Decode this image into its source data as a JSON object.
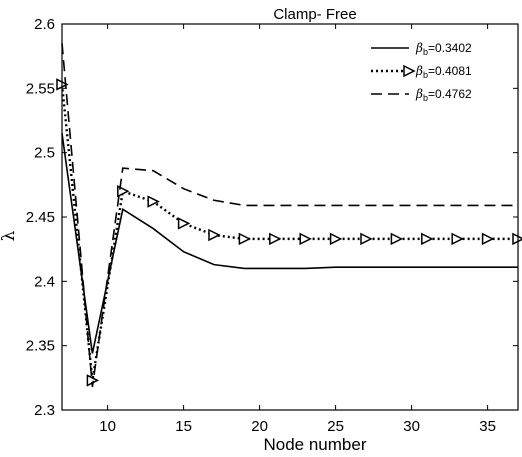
{
  "chart_data": {
    "type": "line",
    "title": "Clamp- Free",
    "xlabel": "Node number",
    "ylabel": "λ",
    "xlim": [
      7,
      37
    ],
    "ylim": [
      2.3,
      2.6
    ],
    "xticks": [
      "10",
      "15",
      "20",
      "25",
      "30",
      "35"
    ],
    "xtick_values": [
      10,
      15,
      20,
      25,
      30,
      35
    ],
    "yticks": [
      "2.3",
      "2.35",
      "2.4",
      "2.45",
      "2.5",
      "2.55",
      "2.6"
    ],
    "ytick_values": [
      2.3,
      2.35,
      2.4,
      2.45,
      2.5,
      2.55,
      2.6
    ],
    "grid": false,
    "legend_position": "top-right",
    "x": [
      7,
      9,
      11,
      13,
      15,
      17,
      19,
      21,
      23,
      25,
      27,
      29,
      31,
      33,
      35,
      37
    ],
    "series": [
      {
        "name": "=0.3402",
        "symbol": "β",
        "subscript": "b",
        "style": "solid",
        "marker": "none",
        "color": "#000000",
        "values": [
          2.515,
          2.344,
          2.456,
          2.441,
          2.423,
          2.413,
          2.41,
          2.41,
          2.41,
          2.411,
          2.411,
          2.411,
          2.411,
          2.411,
          2.411,
          2.411
        ]
      },
      {
        "name": "=0.4081",
        "symbol": "β",
        "subscript": "b",
        "style": "dotted",
        "marker": "triangle-right",
        "color": "#000000",
        "values": [
          2.553,
          2.323,
          2.47,
          2.462,
          2.445,
          2.436,
          2.433,
          2.433,
          2.433,
          2.433,
          2.433,
          2.433,
          2.433,
          2.433,
          2.433,
          2.433
        ]
      },
      {
        "name": "=0.4762",
        "symbol": "β",
        "subscript": "b",
        "style": "dashed",
        "marker": "none",
        "color": "#000000",
        "values": [
          2.585,
          2.318,
          2.488,
          2.486,
          2.472,
          2.463,
          2.459,
          2.459,
          2.459,
          2.459,
          2.459,
          2.459,
          2.459,
          2.459,
          2.459,
          2.459
        ]
      }
    ]
  }
}
